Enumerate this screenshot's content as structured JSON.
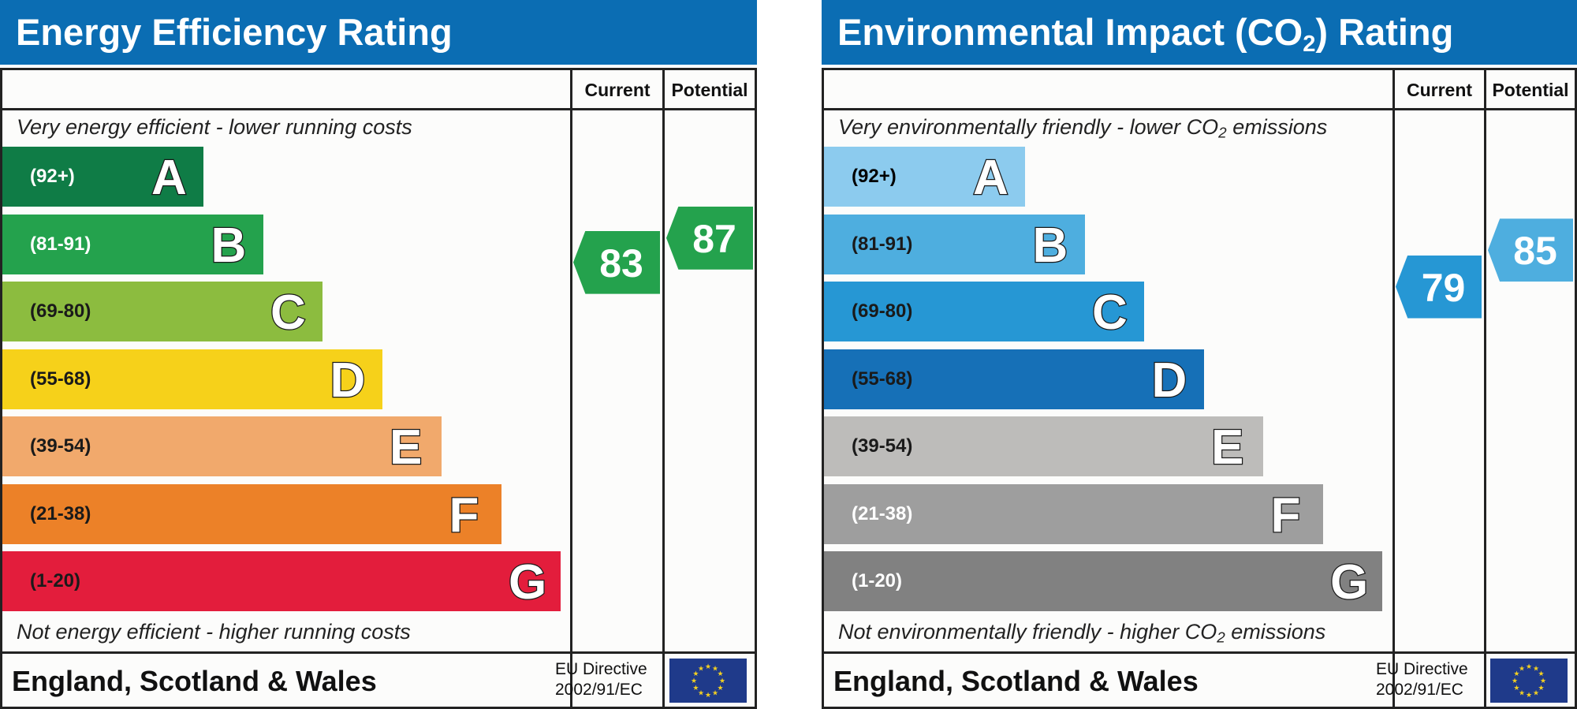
{
  "chart_data": [
    {
      "type": "bar",
      "title": "Energy Efficiency Rating",
      "column_headers": [
        "Current",
        "Potential"
      ],
      "top_caption": "Very energy efficient - lower running costs",
      "bottom_caption": "Not energy efficient - higher running costs",
      "bands": [
        {
          "letter": "A",
          "range": "(92+)",
          "color": "#0f7c46",
          "text_color": "#ffffff"
        },
        {
          "letter": "B",
          "range": "(81-91)",
          "color": "#24a24d",
          "text_color": "#ffffff"
        },
        {
          "letter": "C",
          "range": "(69-80)",
          "color": "#8cbc3f",
          "text_color": "#1a1a1a"
        },
        {
          "letter": "D",
          "range": "(55-68)",
          "color": "#f6d11a",
          "text_color": "#1a1a1a"
        },
        {
          "letter": "E",
          "range": "(39-54)",
          "color": "#f1a96c",
          "text_color": "#1a1a1a"
        },
        {
          "letter": "F",
          "range": "(21-38)",
          "color": "#ec8128",
          "text_color": "#1a1a1a"
        },
        {
          "letter": "G",
          "range": "(1-20)",
          "color": "#e31d3c",
          "text_color": "#1a1a1a"
        }
      ],
      "current": {
        "value": 83,
        "band": "B",
        "color": "#24a24d"
      },
      "potential": {
        "value": 87,
        "band": "B",
        "color": "#24a24d"
      },
      "footer": {
        "country": "England, Scotland & Wales",
        "directive": "EU Directive",
        "directive_number": "2002/91/EC"
      }
    },
    {
      "type": "bar",
      "title": "Environmental Impact (CO",
      "title_sub": "2",
      "title_end": ") Rating",
      "column_headers": [
        "Current",
        "Potential"
      ],
      "top_caption": "Very environmentally friendly - lower CO",
      "top_caption_sub": "2",
      "top_caption_end": " emissions",
      "bottom_caption": "Not environmentally friendly - higher CO",
      "bottom_caption_sub": "2",
      "bottom_caption_end": " emissions",
      "bands": [
        {
          "letter": "A",
          "range": "(92+)",
          "color": "#8ccbee",
          "text_color": "#000000"
        },
        {
          "letter": "B",
          "range": "(81-91)",
          "color": "#4eaedf",
          "text_color": "#1a1a1a"
        },
        {
          "letter": "C",
          "range": "(69-80)",
          "color": "#2697d4",
          "text_color": "#1a1a1a"
        },
        {
          "letter": "D",
          "range": "(55-68)",
          "color": "#1670b7",
          "text_color": "#1a1a1a"
        },
        {
          "letter": "E",
          "range": "(39-54)",
          "color": "#bdbcba",
          "text_color": "#1a1a1a"
        },
        {
          "letter": "F",
          "range": "(21-38)",
          "color": "#9e9e9e",
          "text_color": "#ffffff"
        },
        {
          "letter": "G",
          "range": "(1-20)",
          "color": "#818181",
          "text_color": "#ffffff"
        }
      ],
      "current": {
        "value": 79,
        "band": "C",
        "color": "#2697d4"
      },
      "potential": {
        "value": 85,
        "band": "B",
        "color": "#4eaedf"
      },
      "footer": {
        "country": "England, Scotland & Wales",
        "directive": "EU Directive",
        "directive_number": "2002/91/EC"
      }
    }
  ]
}
